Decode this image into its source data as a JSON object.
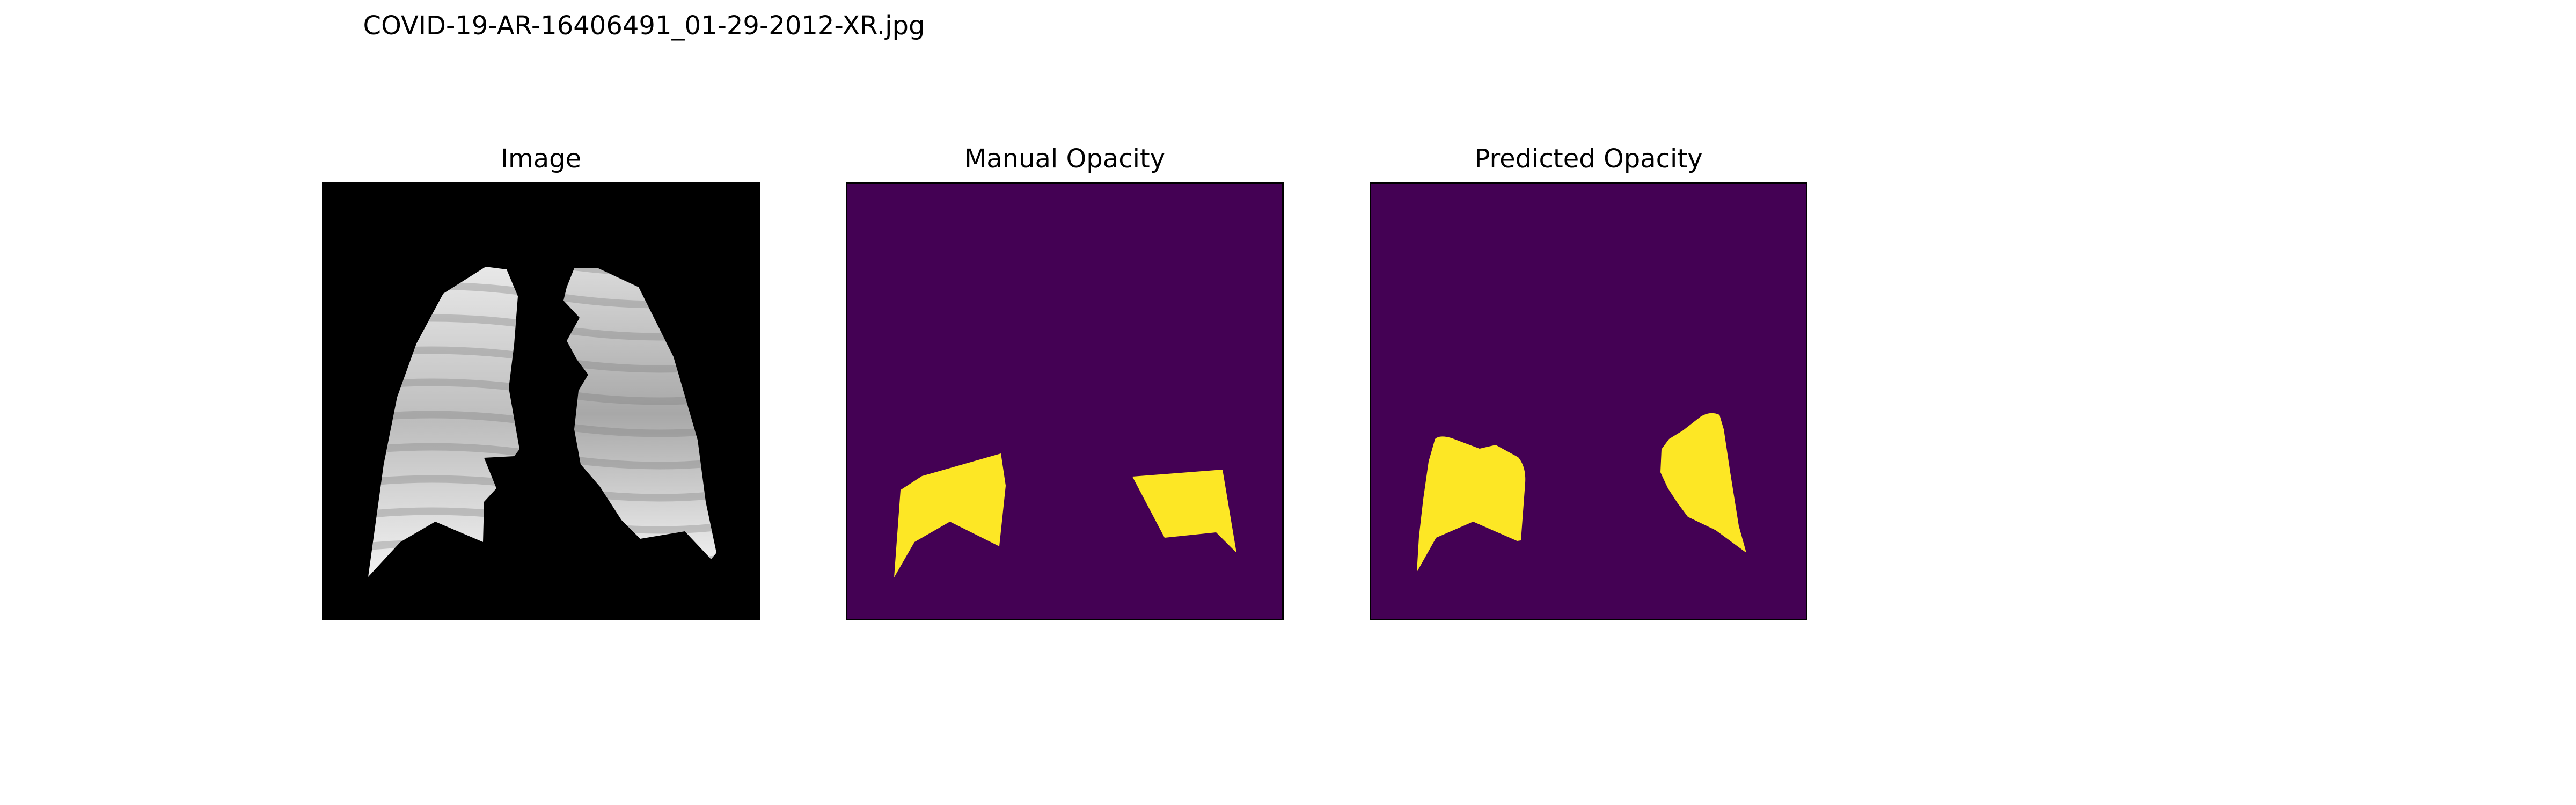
{
  "figure": {
    "title": "COVID-19-AR-16406491_01-29-2012-XR.jpg"
  },
  "panels": [
    {
      "title": "Image"
    },
    {
      "title": "Manual Opacity"
    },
    {
      "title": "Predicted Opacity"
    }
  ],
  "colors": {
    "background_image": "#000000",
    "mask_background": "#440154",
    "mask_foreground": "#fde725",
    "frame": "#000000"
  }
}
